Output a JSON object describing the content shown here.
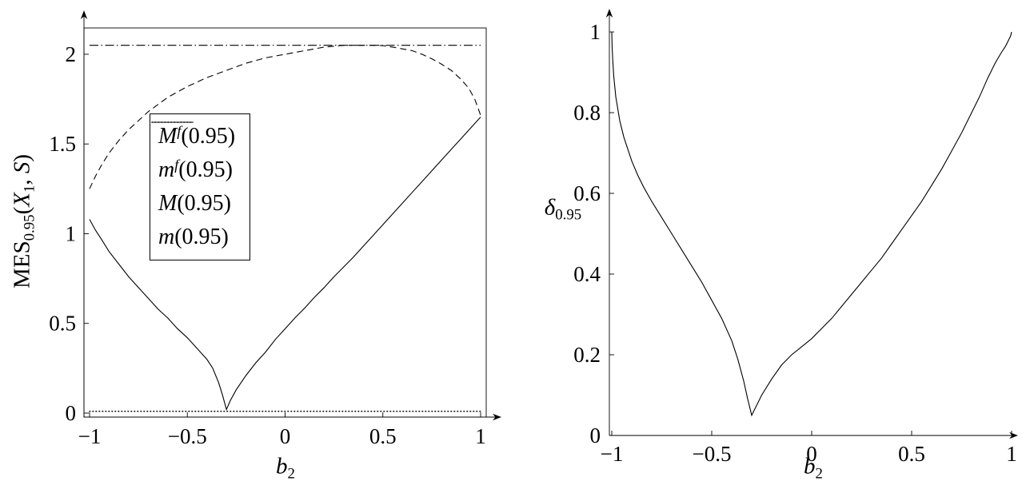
{
  "page": {
    "background": "#ffffff",
    "ink": "#000000"
  },
  "chart_data": [
    {
      "type": "line",
      "title": "",
      "xlabel": "b_2",
      "ylabel": "MES_{0.95}(X_1, S)",
      "xlabel_rich": [
        {
          "t": "b",
          "it": 1
        },
        {
          "t": "2",
          "sub": 1
        }
      ],
      "ylabel_rich": [
        {
          "t": "MES"
        },
        {
          "t": "0.95",
          "sub": 1
        },
        {
          "t": "("
        },
        {
          "t": "X",
          "it": 1
        },
        {
          "t": "1",
          "sub": 1
        },
        {
          "t": ", "
        },
        {
          "t": "S",
          "it": 1
        },
        {
          "t": ")"
        }
      ],
      "xlim": [
        -1,
        1
      ],
      "ylim": [
        0,
        2.2
      ],
      "x_ticks": [
        -1,
        -0.5,
        0,
        0.5,
        1
      ],
      "y_ticks": [
        0,
        0.5,
        1,
        1.5,
        2
      ],
      "grid": false,
      "boxed_axes": true,
      "legend": {
        "position": "inside-upper-left",
        "border": true
      },
      "series": [
        {
          "name": "M^f(0.95)",
          "label_rich": [
            {
              "t": "M",
              "it": 1
            },
            {
              "t": "f",
              "it": 1,
              "sup": 1
            },
            {
              "t": "(0.95)"
            }
          ],
          "style": "dashed",
          "color": "#000000",
          "x": [
            -1,
            -0.97,
            -0.94,
            -0.9,
            -0.85,
            -0.8,
            -0.75,
            -0.7,
            -0.65,
            -0.6,
            -0.55,
            -0.5,
            -0.45,
            -0.4,
            -0.35,
            -0.3,
            -0.25,
            -0.2,
            -0.15,
            -0.1,
            -0.05,
            0,
            0.05,
            0.1,
            0.15,
            0.2,
            0.25,
            0.3,
            0.35,
            0.4,
            0.45,
            0.5,
            0.55,
            0.6,
            0.65,
            0.7,
            0.75,
            0.8,
            0.85,
            0.9,
            0.94,
            0.97,
            1
          ],
          "y": [
            1.25,
            1.32,
            1.38,
            1.45,
            1.52,
            1.58,
            1.63,
            1.68,
            1.72,
            1.76,
            1.79,
            1.82,
            1.845,
            1.87,
            1.89,
            1.91,
            1.93,
            1.95,
            1.965,
            1.98,
            1.99,
            2.0,
            2.01,
            2.02,
            2.03,
            2.04,
            2.045,
            2.05,
            2.05,
            2.05,
            2.05,
            2.048,
            2.04,
            2.03,
            2.02,
            2.0,
            1.975,
            1.945,
            1.91,
            1.86,
            1.81,
            1.75,
            1.66
          ]
        },
        {
          "name": "m^f(0.95)",
          "label_rich": [
            {
              "t": "m",
              "it": 1
            },
            {
              "t": "f",
              "it": 1,
              "sup": 1
            },
            {
              "t": "(0.95)"
            }
          ],
          "style": "solid",
          "color": "#000000",
          "x": [
            -1,
            -0.97,
            -0.94,
            -0.9,
            -0.85,
            -0.8,
            -0.75,
            -0.7,
            -0.65,
            -0.6,
            -0.55,
            -0.5,
            -0.45,
            -0.4,
            -0.37,
            -0.34,
            -0.32,
            -0.3,
            -0.28,
            -0.25,
            -0.2,
            -0.15,
            -0.1,
            -0.05,
            0,
            0.05,
            0.1,
            0.15,
            0.2,
            0.25,
            0.3,
            0.35,
            0.4,
            0.45,
            0.5,
            0.55,
            0.6,
            0.65,
            0.7,
            0.75,
            0.8,
            0.85,
            0.9,
            0.95,
            1
          ],
          "y": [
            1.08,
            1.02,
            0.97,
            0.9,
            0.83,
            0.76,
            0.7,
            0.64,
            0.58,
            0.53,
            0.47,
            0.42,
            0.36,
            0.3,
            0.25,
            0.17,
            0.1,
            0.02,
            0.07,
            0.13,
            0.21,
            0.28,
            0.34,
            0.41,
            0.47,
            0.53,
            0.585,
            0.645,
            0.7,
            0.76,
            0.815,
            0.87,
            0.93,
            0.99,
            1.05,
            1.11,
            1.17,
            1.23,
            1.29,
            1.35,
            1.41,
            1.47,
            1.53,
            1.59,
            1.65
          ]
        },
        {
          "name": "M(0.95)",
          "label_rich": [
            {
              "t": "M",
              "it": 1
            },
            {
              "t": "(0.95)"
            }
          ],
          "style": "dashdot",
          "color": "#000000",
          "x": [
            -1,
            1
          ],
          "y": [
            2.05,
            2.05
          ]
        },
        {
          "name": "m(0.95)",
          "label_rich": [
            {
              "t": "m",
              "it": 1
            },
            {
              "t": "(0.95)"
            }
          ],
          "style": "dotted",
          "color": "#000000",
          "x": [
            -1,
            1
          ],
          "y": [
            0.01,
            0.01
          ]
        }
      ]
    },
    {
      "type": "line",
      "title": "",
      "xlabel": "b_2",
      "ylabel": "delta_{0.95}",
      "xlabel_rich": [
        {
          "t": "b",
          "it": 1
        },
        {
          "t": "2",
          "sub": 1
        }
      ],
      "ylabel_rich": [
        {
          "t": "δ",
          "it": 1
        },
        {
          "t": "0.95",
          "sub": 1
        }
      ],
      "xlim": [
        -1,
        1
      ],
      "ylim": [
        0,
        1
      ],
      "x_ticks": [
        -1,
        -0.5,
        0,
        0.5,
        1
      ],
      "y_ticks": [
        0,
        0.2,
        0.4,
        0.6,
        0.8,
        1
      ],
      "grid": false,
      "boxed_axes": false,
      "series": [
        {
          "name": "delta_{0.95}",
          "label_rich": [
            {
              "t": "δ",
              "it": 1
            },
            {
              "t": "0.95",
              "sub": 1
            }
          ],
          "style": "solid",
          "color": "#000000",
          "x": [
            -1,
            -0.998,
            -0.995,
            -0.99,
            -0.98,
            -0.96,
            -0.94,
            -0.92,
            -0.9,
            -0.87,
            -0.84,
            -0.8,
            -0.75,
            -0.7,
            -0.65,
            -0.6,
            -0.55,
            -0.5,
            -0.45,
            -0.4,
            -0.37,
            -0.34,
            -0.32,
            -0.3,
            -0.28,
            -0.25,
            -0.2,
            -0.15,
            -0.1,
            -0.05,
            0,
            0.05,
            0.1,
            0.15,
            0.2,
            0.25,
            0.3,
            0.35,
            0.4,
            0.45,
            0.5,
            0.55,
            0.6,
            0.65,
            0.7,
            0.75,
            0.8,
            0.84,
            0.88,
            0.92,
            0.95,
            0.97,
            0.985,
            0.995,
            1
          ],
          "y": [
            1.0,
            0.96,
            0.93,
            0.89,
            0.84,
            0.78,
            0.74,
            0.71,
            0.68,
            0.645,
            0.615,
            0.58,
            0.54,
            0.5,
            0.46,
            0.42,
            0.38,
            0.335,
            0.29,
            0.235,
            0.19,
            0.135,
            0.09,
            0.05,
            0.07,
            0.1,
            0.14,
            0.175,
            0.2,
            0.22,
            0.24,
            0.265,
            0.29,
            0.32,
            0.35,
            0.38,
            0.41,
            0.44,
            0.475,
            0.51,
            0.545,
            0.58,
            0.62,
            0.66,
            0.705,
            0.75,
            0.8,
            0.84,
            0.885,
            0.925,
            0.95,
            0.965,
            0.98,
            0.99,
            1.0
          ]
        }
      ]
    }
  ]
}
